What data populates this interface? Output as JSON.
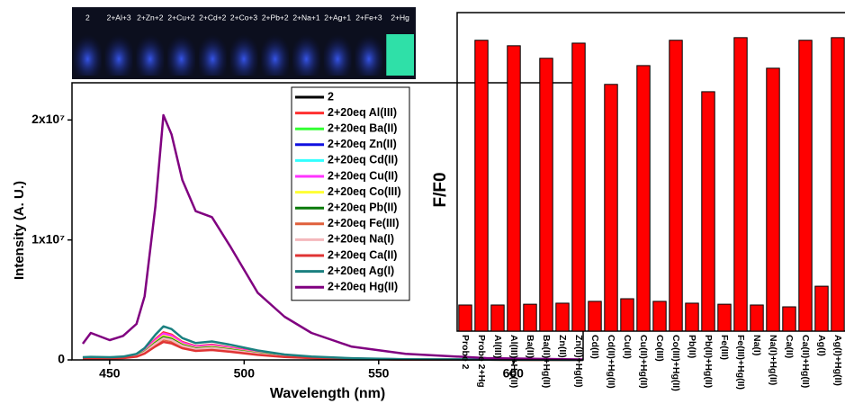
{
  "photo_labels": [
    "2",
    "2+Al+3",
    "2+Zn+2",
    "2+Cu+2",
    "2+Cd+2",
    "2+Co+3",
    "2+Pb+2",
    "2+Na+1",
    "2+Ag+1",
    "2+Fe+3",
    "2+Hg"
  ],
  "chart_data": [
    {
      "type": "line",
      "xlabel": "Wavelength (nm)",
      "ylabel": "Intensity (A. U.)",
      "xlim": [
        436,
        626
      ],
      "xticks": [
        450,
        500,
        550,
        600
      ],
      "ylim": [
        0,
        23100000
      ],
      "yticks": [
        0,
        {
          "value": 10000000,
          "label": "1x10⁷"
        },
        {
          "value": 20000000,
          "label": "2x10⁷"
        }
      ],
      "legend": "top-right",
      "x": [
        440,
        443,
        450,
        455,
        460,
        463,
        467,
        470,
        473,
        477,
        482,
        488,
        495,
        505,
        515,
        525,
        540,
        560,
        590,
        626
      ],
      "series": [
        {
          "name": "2",
          "color": "#000000",
          "values": [
            160000,
            180000,
            160000,
            200000,
            360000,
            700000,
            1500000,
            2000000,
            1840000,
            1300000,
            1000000,
            1100000,
            900000,
            560000,
            320000,
            200000,
            100000,
            40000,
            20000,
            0
          ]
        },
        {
          "name": "2+20eq Al(III)",
          "color": "#ff3030",
          "values": [
            184000,
            207000,
            184000,
            230000,
            414000,
            805000,
            1725000,
            2300000,
            2116000,
            1495000,
            1150000,
            1265000,
            1035000,
            644000,
            368000,
            230000,
            115000,
            46000,
            23000,
            0
          ]
        },
        {
          "name": "2+20eq Ba(II)",
          "color": "#33ff33",
          "values": [
            160000,
            180000,
            160000,
            200000,
            360000,
            700000,
            1500000,
            2000000,
            1840000,
            1300000,
            1000000,
            1100000,
            900000,
            560000,
            320000,
            200000,
            100000,
            40000,
            20000,
            0
          ]
        },
        {
          "name": "2+20eq Zn(II)",
          "color": "#1010e0",
          "values": [
            160000,
            180000,
            160000,
            200000,
            360000,
            700000,
            1500000,
            2000000,
            1840000,
            1300000,
            1000000,
            1100000,
            900000,
            560000,
            320000,
            200000,
            100000,
            40000,
            20000,
            0
          ]
        },
        {
          "name": "2+20eq Cd(II)",
          "color": "#33ffff",
          "values": [
            168000,
            189000,
            168000,
            210000,
            378000,
            735000,
            1575000,
            2100000,
            1932000,
            1365000,
            1050000,
            1155000,
            945000,
            588000,
            336000,
            210000,
            105000,
            42000,
            21000,
            0
          ]
        },
        {
          "name": "2+20eq Cu(II)",
          "color": "#ff33ff",
          "values": [
            176000,
            198000,
            176000,
            220000,
            396000,
            770000,
            1650000,
            2200000,
            2024000,
            1430000,
            1100000,
            1210000,
            990000,
            616000,
            352000,
            220000,
            110000,
            44000,
            22000,
            0
          ]
        },
        {
          "name": "2+20eq Co(III)",
          "color": "#ffff33",
          "values": [
            160000,
            180000,
            160000,
            200000,
            360000,
            700000,
            1500000,
            2000000,
            1840000,
            1300000,
            1000000,
            1100000,
            900000,
            560000,
            320000,
            200000,
            100000,
            40000,
            20000,
            0
          ]
        },
        {
          "name": "2+20eq Pb(II)",
          "color": "#0a7a0a",
          "values": [
            152000,
            171000,
            152000,
            190000,
            342000,
            665000,
            1425000,
            1900000,
            1748000,
            1235000,
            950000,
            1045000,
            855000,
            532000,
            304000,
            190000,
            95000,
            38000,
            19000,
            0
          ]
        },
        {
          "name": "2+20eq Fe(III)",
          "color": "#e0603c",
          "values": [
            136000,
            153000,
            136000,
            170000,
            306000,
            595000,
            1275000,
            1700000,
            1564000,
            1105000,
            850000,
            935000,
            765000,
            476000,
            272000,
            170000,
            85000,
            34000,
            17000,
            0
          ]
        },
        {
          "name": "2+20eq Na(I)",
          "color": "#f4b8bc",
          "values": [
            144000,
            162000,
            144000,
            180000,
            324000,
            630000,
            1350000,
            1800000,
            1656000,
            1170000,
            900000,
            990000,
            810000,
            504000,
            288000,
            180000,
            90000,
            36000,
            18000,
            0
          ]
        },
        {
          "name": "2+20eq Ca(II)",
          "color": "#e03434",
          "values": [
            120000,
            135000,
            120000,
            150000,
            270000,
            525000,
            1125000,
            1500000,
            1380000,
            975000,
            750000,
            825000,
            675000,
            420000,
            240000,
            150000,
            75000,
            30000,
            15000,
            0
          ]
        },
        {
          "name": "2+20eq Ag(I)",
          "color": "#1a8080",
          "values": [
            224000,
            252000,
            224000,
            280000,
            504000,
            980000,
            2100000,
            2800000,
            2576000,
            1820000,
            1400000,
            1540000,
            1260000,
            784000,
            448000,
            280000,
            140000,
            56000,
            28000,
            0
          ]
        },
        {
          "name": "2+20eq Hg(II)",
          "color": "#800080",
          "values": [
            1350000,
            2250000,
            1650000,
            2000000,
            3000000,
            5300000,
            12800000,
            20400000,
            18800000,
            15000000,
            12400000,
            11900000,
            9400000,
            5600000,
            3600000,
            2250000,
            1100000,
            500000,
            150000,
            40000
          ]
        }
      ]
    },
    {
      "type": "bar",
      "ylabel": "F/F0",
      "color": "#ff0000",
      "ylim": [
        0,
        12.2
      ],
      "categories": [
        "Probe 2",
        "Probe 2+Hg",
        "Al(III)",
        "Al(III)+Hg(II)",
        "Ba(II)",
        "Ba(II)+Hg(II)",
        "Zn(II)",
        "Zn(II)+Hg(II)",
        "Cd(II)",
        "Cd(II)+Hg(II)",
        "Cu(II)",
        "Cu(II)+Hg(II)",
        "Co(III)",
        "Co(III)+Hg(II)",
        "Pb(II)",
        "Pb(II)+Hg(II)",
        "Fe(III)",
        "Fe(III)+Hg(II)",
        "Na(I)",
        "Na(I)+Hg(II)",
        "Ca(II)",
        "Ca(II)+Hg(II)",
        "Ag(I)",
        "Ag(I)+Hg(II)"
      ],
      "values": [
        1.0,
        11.14,
        1.0,
        10.93,
        1.03,
        10.45,
        1.07,
        11.03,
        1.14,
        9.45,
        1.24,
        10.17,
        1.14,
        11.14,
        1.07,
        9.17,
        1.03,
        11.24,
        1.0,
        10.07,
        0.93,
        11.14,
        1.72,
        11.24
      ]
    }
  ]
}
